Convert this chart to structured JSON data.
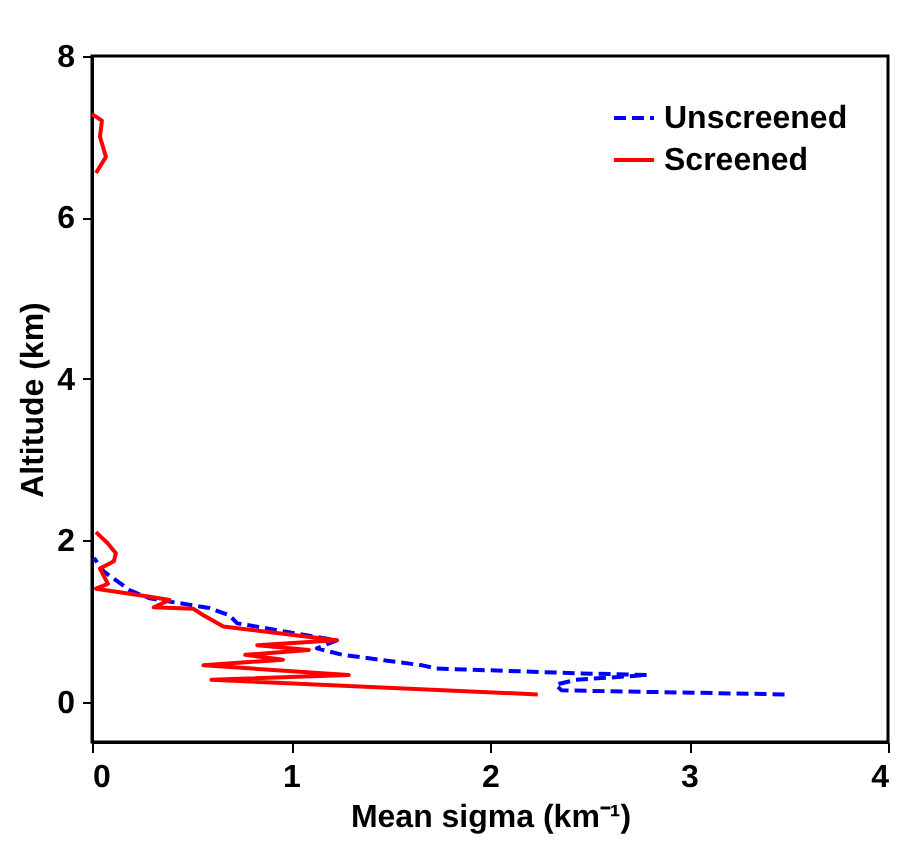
{
  "chart_data": {
    "type": "line",
    "xlabel": "Mean sigma (km⁻¹)",
    "ylabel": "Altitude (km)",
    "xlim": [
      0,
      4
    ],
    "xticks": [
      0,
      1,
      2,
      3,
      4
    ],
    "ylim": [
      -0.5,
      8
    ],
    "yticks": [
      0,
      2,
      4,
      6,
      8
    ],
    "grid": false,
    "legend": "top right",
    "marker": "none",
    "series": [
      {
        "name": "Unscreened",
        "color": "#0000ff",
        "line_style": "dashed",
        "x": [
          3.48,
          2.36,
          2.33,
          2.43,
          2.79,
          2.46,
          1.73,
          1.66,
          1.26,
          1.13,
          1.23,
          0.73,
          0.69,
          0.59,
          0.29,
          0.19,
          0.06,
          0.01
        ],
        "values": [
          0.09,
          0.14,
          0.21,
          0.27,
          0.33,
          0.35,
          0.41,
          0.45,
          0.58,
          0.66,
          0.76,
          0.97,
          1.07,
          1.16,
          1.28,
          1.38,
          1.61,
          1.78
        ]
      },
      {
        "name": "Screened",
        "color": "#ff0000",
        "line_style": "solid",
        "x": [
          2.24,
          0.6,
          1.29,
          0.56,
          0.96,
          0.77,
          1.09,
          0.83,
          1.23,
          0.66,
          0.56,
          0.51,
          0.31,
          0.39,
          0.29,
          0.02,
          0.08,
          0.04,
          0.11,
          0.12,
          0.08,
          0.02,
          null,
          0.02,
          0.07,
          0.04,
          0.05,
          0.0
        ],
        "values": [
          0.09,
          0.27,
          0.33,
          0.45,
          0.52,
          0.58,
          0.64,
          0.7,
          0.76,
          0.93,
          1.07,
          1.15,
          1.17,
          1.26,
          1.3,
          1.4,
          1.46,
          1.65,
          1.74,
          1.84,
          1.96,
          2.1,
          null,
          6.55,
          6.75,
          7.0,
          7.2,
          7.28
        ]
      }
    ]
  }
}
